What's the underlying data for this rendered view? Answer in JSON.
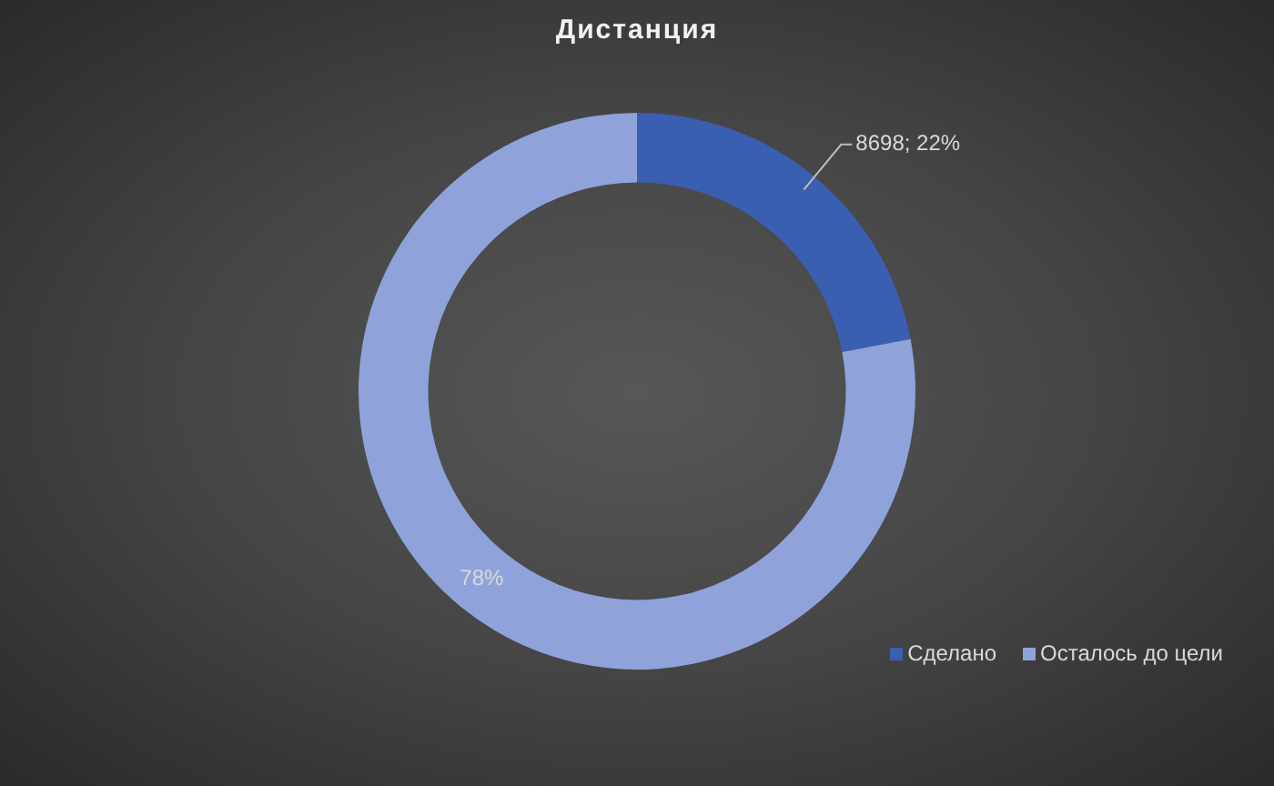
{
  "chart_data": {
    "type": "donut",
    "title": "Дистанция",
    "categories": [
      "Сделано",
      "Осталось до цели"
    ],
    "values": [
      22,
      78
    ],
    "value_labels": [
      "8698; 22%",
      "78%"
    ],
    "colors": [
      "#3a5fb0",
      "#8fa3da"
    ],
    "legend": "bottom right"
  }
}
